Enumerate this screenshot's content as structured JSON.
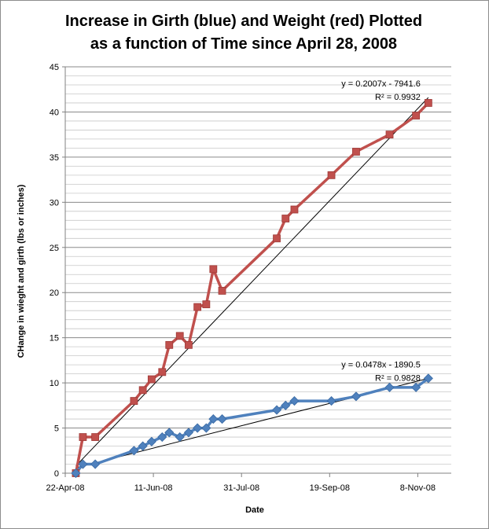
{
  "chart_data": {
    "type": "line",
    "title_lines": [
      "Increase in Girth (blue) and Weight (red) Plotted",
      "as a function of Time since April 28, 2008"
    ],
    "xlabel": "Date",
    "ylabel": "CHange in wieght and girth (lbs or inches)",
    "ylim": [
      0,
      45
    ],
    "yticks": [
      0,
      5,
      10,
      15,
      20,
      25,
      30,
      35,
      40,
      45
    ],
    "xlim": [
      "2008-04-22",
      "2008-11-27"
    ],
    "xticks": [
      {
        "date": "2008-04-22",
        "label": "22-Apr-08"
      },
      {
        "date": "2008-06-11",
        "label": "11-Jun-08"
      },
      {
        "date": "2008-07-31",
        "label": "31-Jul-08"
      },
      {
        "date": "2008-09-19",
        "label": "19-Sep-08"
      },
      {
        "date": "2008-11-08",
        "label": "8-Nov-08"
      }
    ],
    "grid": true,
    "legend": "none",
    "series": [
      {
        "color": "#c0504d",
        "marker": "square",
        "points": [
          [
            "2008-04-28",
            0.0
          ],
          [
            "2008-05-02",
            4.0
          ],
          [
            "2008-05-09",
            4.0
          ],
          [
            "2008-05-31",
            8.0
          ],
          [
            "2008-06-05",
            9.2
          ],
          [
            "2008-06-10",
            10.4
          ],
          [
            "2008-06-16",
            11.2
          ],
          [
            "2008-06-20",
            14.2
          ],
          [
            "2008-06-26",
            15.2
          ],
          [
            "2008-07-01",
            14.2
          ],
          [
            "2008-07-06",
            18.4
          ],
          [
            "2008-07-11",
            18.7
          ],
          [
            "2008-07-15",
            22.6
          ],
          [
            "2008-07-20",
            20.2
          ],
          [
            "2008-08-20",
            26.0
          ],
          [
            "2008-08-25",
            28.2
          ],
          [
            "2008-08-30",
            29.2
          ],
          [
            "2008-09-20",
            33.0
          ],
          [
            "2008-10-04",
            35.6
          ],
          [
            "2008-10-23",
            37.5
          ],
          [
            "2008-11-07",
            39.6
          ],
          [
            "2008-11-14",
            41.0
          ]
        ]
      },
      {
        "color": "#4f81bd",
        "marker": "diamond",
        "points": [
          [
            "2008-04-28",
            0.0
          ],
          [
            "2008-05-02",
            1.0
          ],
          [
            "2008-05-09",
            1.0
          ],
          [
            "2008-05-31",
            2.5
          ],
          [
            "2008-06-05",
            3.0
          ],
          [
            "2008-06-10",
            3.5
          ],
          [
            "2008-06-16",
            4.0
          ],
          [
            "2008-06-20",
            4.5
          ],
          [
            "2008-06-26",
            4.0
          ],
          [
            "2008-07-01",
            4.5
          ],
          [
            "2008-07-06",
            5.0
          ],
          [
            "2008-07-11",
            5.0
          ],
          [
            "2008-07-15",
            6.0
          ],
          [
            "2008-07-20",
            6.0
          ],
          [
            "2008-08-20",
            7.0
          ],
          [
            "2008-08-25",
            7.5
          ],
          [
            "2008-08-30",
            8.0
          ],
          [
            "2008-09-20",
            8.0
          ],
          [
            "2008-10-04",
            8.5
          ],
          [
            "2008-10-23",
            9.5
          ],
          [
            "2008-11-07",
            9.5
          ],
          [
            "2008-11-14",
            10.5
          ]
        ]
      }
    ],
    "trendlines": [
      {
        "series": 0,
        "equation": "y = 0.2007x - 7941.6",
        "r2": "R² = 0.9932",
        "y_start": 0.8,
        "y_end": 41.6
      },
      {
        "series": 1,
        "equation": "y = 0.0478x - 1890.5",
        "r2": "R² = 0.9828",
        "y_start": 0.6,
        "y_end": 10.5
      }
    ]
  }
}
